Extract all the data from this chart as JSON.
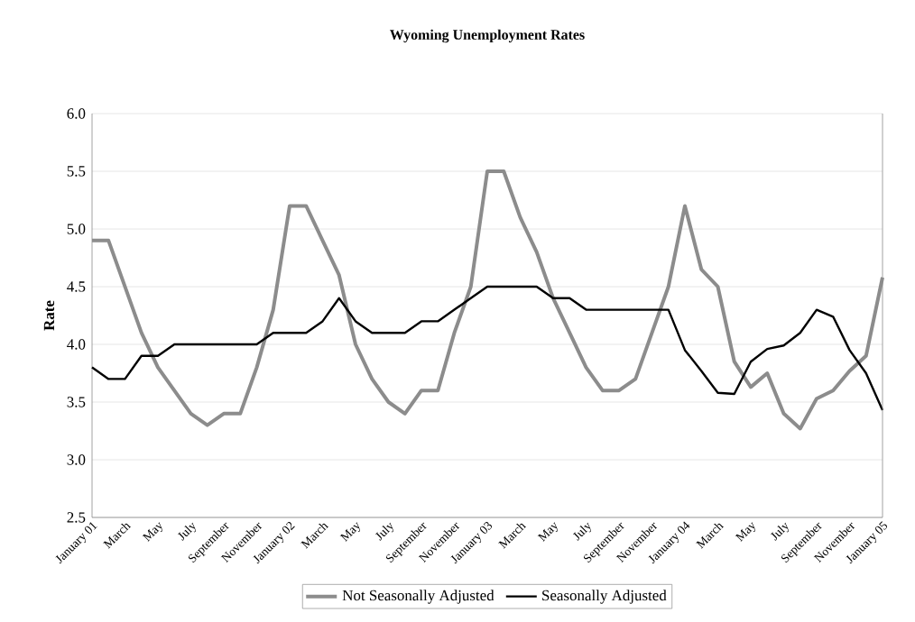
{
  "chart_data": {
    "type": "line",
    "title": "Wyoming Unemployment Rates",
    "ylabel": "Rate",
    "categories": [
      "January 01",
      null,
      "March",
      null,
      "May",
      null,
      "July",
      null,
      "September",
      null,
      "November",
      null,
      "January 02",
      null,
      "March",
      null,
      "May",
      null,
      "July",
      null,
      "September",
      null,
      "November",
      null,
      "January 03",
      null,
      "March",
      null,
      "May",
      null,
      "July",
      null,
      "September",
      null,
      "November",
      null,
      "January 04",
      null,
      "March",
      null,
      "May",
      null,
      "July",
      null,
      "September",
      null,
      "November",
      null,
      "January 05"
    ],
    "series": [
      {
        "name": "Not Seasonally Adjusted",
        "color": "#8c8c8c",
        "values": [
          4.9,
          4.9,
          4.5,
          4.1,
          3.8,
          3.6,
          3.4,
          3.3,
          3.4,
          3.4,
          3.8,
          4.3,
          5.2,
          5.2,
          4.9,
          4.6,
          4.0,
          3.7,
          3.5,
          3.4,
          3.6,
          3.6,
          4.1,
          4.5,
          5.5,
          5.5,
          5.1,
          4.8,
          4.4,
          4.1,
          3.8,
          3.6,
          3.6,
          3.7,
          4.1,
          4.5,
          5.2,
          4.65,
          4.5,
          3.85,
          3.63,
          3.75,
          3.4,
          3.27,
          3.53,
          3.6,
          3.77,
          3.9,
          4.58
        ]
      },
      {
        "name": "Seasonally Adjusted",
        "color": "#000000",
        "values": [
          3.8,
          3.7,
          3.7,
          3.9,
          3.9,
          4.0,
          4.0,
          4.0,
          4.0,
          4.0,
          4.0,
          4.1,
          4.1,
          4.1,
          4.2,
          4.4,
          4.2,
          4.1,
          4.1,
          4.1,
          4.2,
          4.2,
          4.3,
          4.4,
          4.5,
          4.5,
          4.5,
          4.5,
          4.4,
          4.4,
          4.3,
          4.3,
          4.3,
          4.3,
          4.3,
          4.3,
          3.95,
          3.77,
          3.58,
          3.57,
          3.85,
          3.96,
          3.99,
          4.1,
          4.3,
          4.24,
          3.95,
          3.75,
          3.43
        ]
      }
    ],
    "ylim": [
      2.5,
      6.0
    ],
    "yticks": [
      {
        "value": 2.5,
        "label": "2.5"
      },
      {
        "value": 3.0,
        "label": "3.0"
      },
      {
        "value": 3.5,
        "label": "3.5"
      },
      {
        "value": 4.0,
        "label": "4.0"
      },
      {
        "value": 4.5,
        "label": "4.5"
      },
      {
        "value": 5.0,
        "label": "5.0"
      },
      {
        "value": 5.5,
        "label": "5.5"
      },
      {
        "value": 6.0,
        "label": "6.0"
      }
    ],
    "grid": "y",
    "legend": "bottom",
    "marker": "none",
    "line_style": "solid"
  }
}
